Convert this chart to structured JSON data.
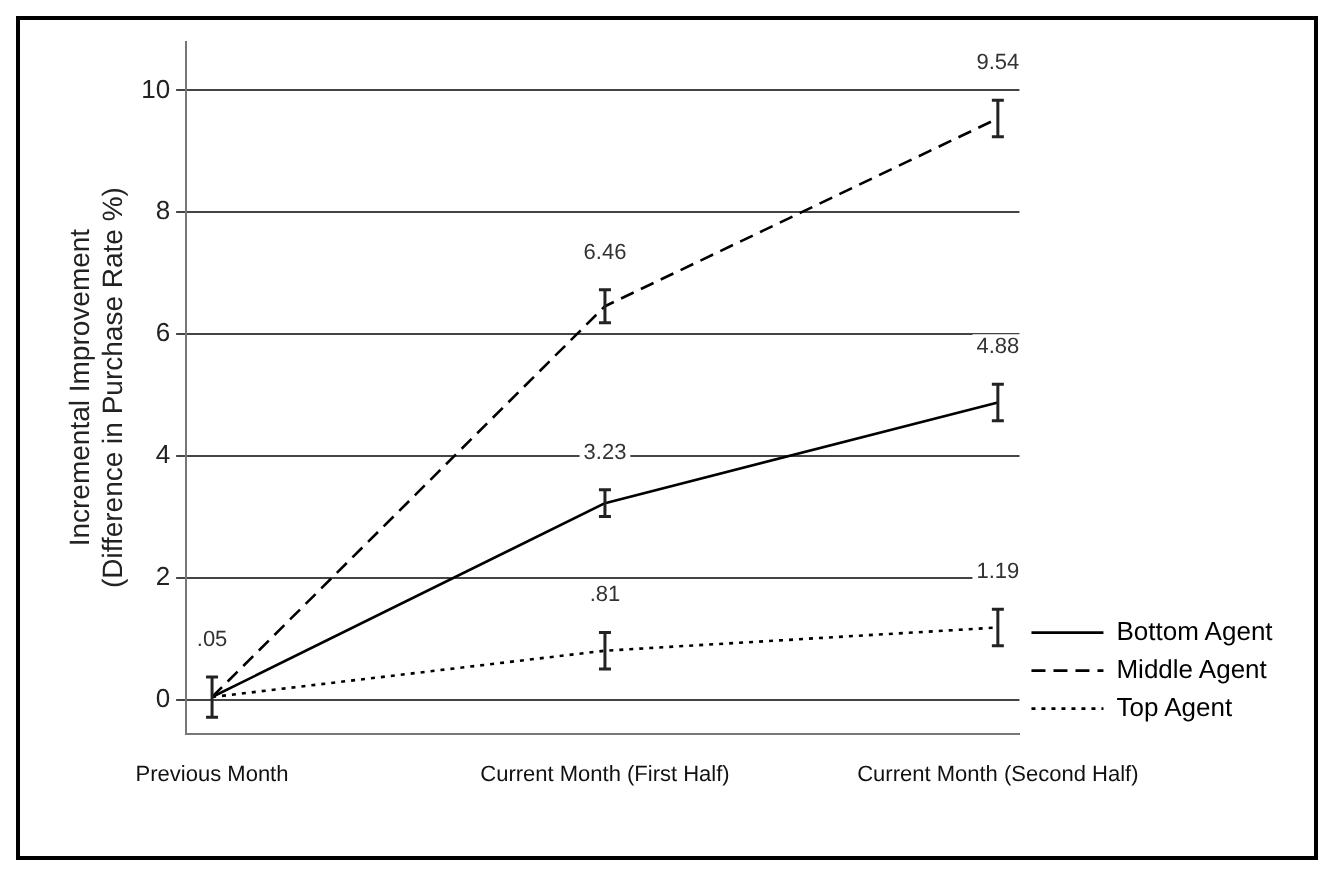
{
  "chart_data": {
    "type": "line",
    "ylabel": "Incremental Improvement\n(Difference in Purchase Rate %)",
    "categories": [
      "Previous Month",
      "Current Month (First Half)",
      "Current Month (Second Half)"
    ],
    "series": [
      {
        "name": "Bottom Agent",
        "color": "#000000",
        "line_style": "solid",
        "values": [
          0.05,
          3.23,
          4.88
        ],
        "errors": [
          0.33,
          0.22,
          0.3
        ],
        "value_labels": [
          ".05",
          "3.23",
          "4.88"
        ]
      },
      {
        "name": "Middle Agent",
        "color": "#000000",
        "line_style": "dashed",
        "values": [
          0.05,
          6.46,
          9.54
        ],
        "errors": [
          null,
          0.27,
          0.3
        ],
        "value_labels": [
          null,
          "6.46",
          "9.54"
        ]
      },
      {
        "name": "Top Agent",
        "color": "#000000",
        "line_style": "dotted",
        "values": [
          0.05,
          0.81,
          1.19
        ],
        "errors": [
          null,
          0.3,
          0.3
        ],
        "value_labels": [
          null,
          ".81",
          "1.19"
        ]
      }
    ],
    "ylim": [
      -0.55,
      10.8
    ],
    "yticks": [
      0,
      2,
      4,
      6,
      8,
      10
    ],
    "grid": "y",
    "legend": "right",
    "marker": "none"
  }
}
